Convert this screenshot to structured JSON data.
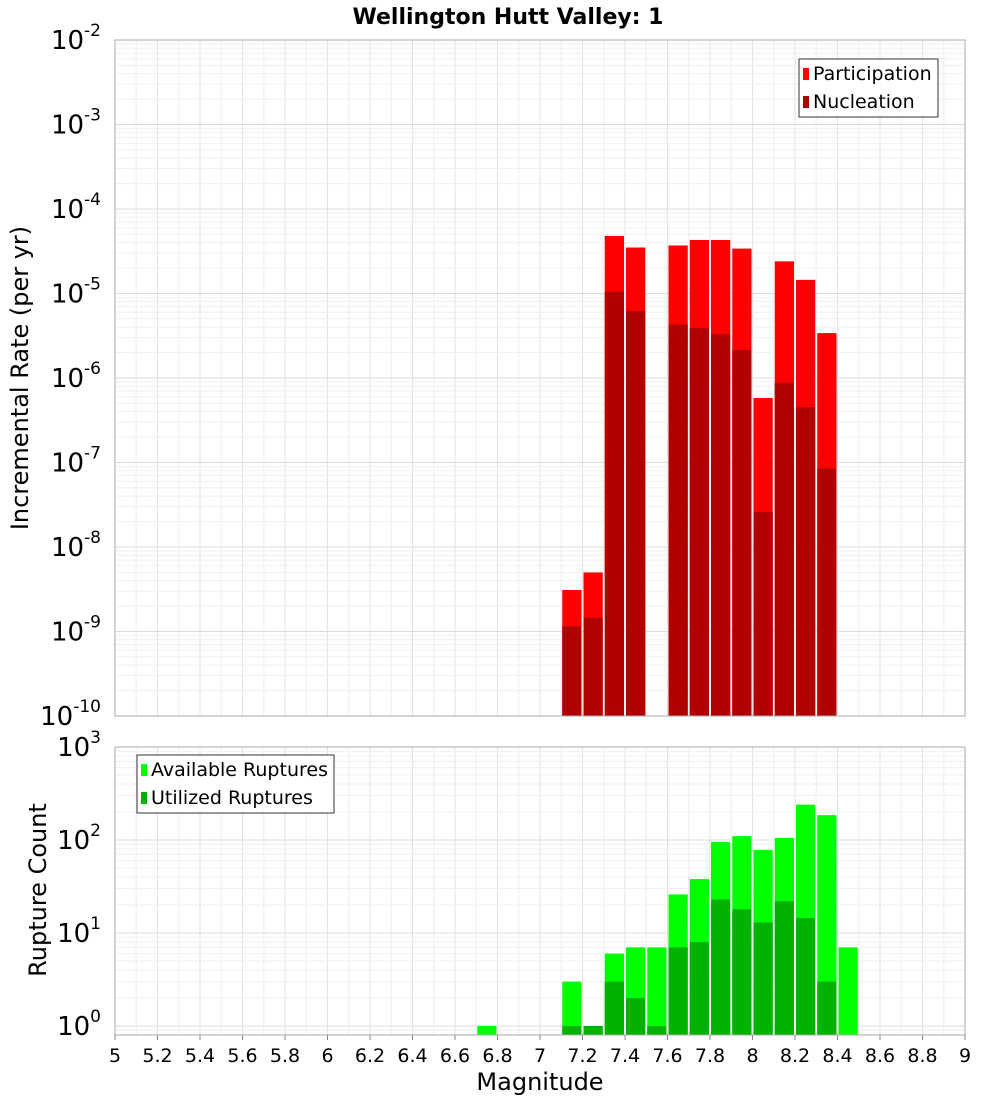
{
  "chart_data": [
    {
      "type": "bar",
      "panel": "top",
      "title": "Wellington Hutt Valley: 1",
      "xlabel": "",
      "ylabel": "Incremental Rate (per yr)",
      "yscale": "log",
      "xlim": [
        5,
        9
      ],
      "ylim": [
        1e-10,
        0.01
      ],
      "y_ticks": [
        {
          "base": "10",
          "exp": "-10",
          "value": 1e-10
        },
        {
          "base": "10",
          "exp": "-9",
          "value": 1e-09
        },
        {
          "base": "10",
          "exp": "-8",
          "value": 1e-08
        },
        {
          "base": "10",
          "exp": "-7",
          "value": 1e-07
        },
        {
          "base": "10",
          "exp": "-6",
          "value": 1e-06
        },
        {
          "base": "10",
          "exp": "-5",
          "value": 1e-05
        },
        {
          "base": "10",
          "exp": "-4",
          "value": 0.0001
        },
        {
          "base": "10",
          "exp": "-3",
          "value": 0.001
        },
        {
          "base": "10",
          "exp": "-2",
          "value": 0.01
        }
      ],
      "grid": true,
      "legend_position": "top-right",
      "series": [
        {
          "name": "Participation",
          "color": "#ff0000",
          "x": [
            7.15,
            7.25,
            7.35,
            7.45,
            7.65,
            7.75,
            7.85,
            7.95,
            8.05,
            8.15,
            8.25,
            8.35
          ],
          "values": [
            3.1e-09,
            5e-09,
            4.8e-05,
            3.5e-05,
            3.7e-05,
            4.3e-05,
            4.3e-05,
            3.4e-05,
            5.8e-07,
            2.4e-05,
            1.45e-05,
            3.4e-06
          ]
        },
        {
          "name": "Nucleation",
          "color": "#b20000",
          "x": [
            7.15,
            7.25,
            7.35,
            7.45,
            7.65,
            7.75,
            7.85,
            7.95,
            8.05,
            8.15,
            8.25,
            8.35
          ],
          "values": [
            1.15e-09,
            1.45e-09,
            1.05e-05,
            6.2e-06,
            4.3e-06,
            3.9e-06,
            3.3e-06,
            2.15e-06,
            2.6e-08,
            8.8e-07,
            4.5e-07,
            8.5e-08
          ]
        }
      ]
    },
    {
      "type": "bar",
      "panel": "bottom",
      "title": "",
      "xlabel": "Magnitude",
      "ylabel": "Rupture Count",
      "yscale": "log",
      "xlim": [
        5,
        9
      ],
      "ylim": [
        0.8,
        1000
      ],
      "x_ticks": [
        "5",
        "5.2",
        "5.4",
        "5.6",
        "5.8",
        "6",
        "6.2",
        "6.4",
        "6.6",
        "6.8",
        "7",
        "7.2",
        "7.4",
        "7.6",
        "7.8",
        "8",
        "8.2",
        "8.4",
        "8.6",
        "8.8",
        "9"
      ],
      "y_ticks": [
        {
          "base": "10",
          "exp": "0",
          "value": 1
        },
        {
          "base": "10",
          "exp": "1",
          "value": 10
        },
        {
          "base": "10",
          "exp": "2",
          "value": 100
        },
        {
          "base": "10",
          "exp": "3",
          "value": 1000
        }
      ],
      "grid": true,
      "legend_position": "top-left",
      "series": [
        {
          "name": "Available Ruptures",
          "color": "#00ff00",
          "x": [
            6.75,
            7.15,
            7.25,
            7.35,
            7.45,
            7.55,
            7.65,
            7.75,
            7.85,
            7.95,
            8.05,
            8.15,
            8.25,
            8.35,
            8.45
          ],
          "values": [
            1,
            3,
            1,
            6,
            7,
            7,
            26,
            38,
            95,
            110,
            78,
            105,
            240,
            185,
            7
          ]
        },
        {
          "name": "Utilized Ruptures",
          "color": "#00b200",
          "x": [
            7.15,
            7.25,
            7.35,
            7.45,
            7.55,
            7.65,
            7.75,
            7.85,
            7.95,
            8.05,
            8.15,
            8.25,
            8.35
          ],
          "values": [
            1,
            1,
            3,
            2,
            1,
            7,
            8,
            23,
            18,
            13,
            22,
            14.5,
            3
          ]
        }
      ]
    }
  ]
}
